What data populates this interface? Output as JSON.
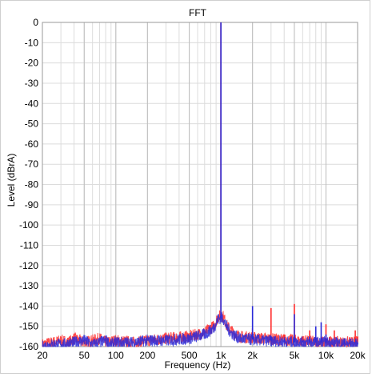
{
  "chart_data": {
    "type": "line",
    "title": "FFT",
    "xlabel": "Frequency (Hz)",
    "ylabel": "Level (dBrA)",
    "xscale": "log",
    "xlim": [
      20,
      20000
    ],
    "ylim": [
      -160,
      0
    ],
    "grid": true,
    "x_ticks": [
      {
        "value": 20,
        "label": "20"
      },
      {
        "value": 50,
        "label": "50"
      },
      {
        "value": 100,
        "label": "100"
      },
      {
        "value": 200,
        "label": "200"
      },
      {
        "value": 500,
        "label": "500"
      },
      {
        "value": 1000,
        "label": "1k"
      },
      {
        "value": 2000,
        "label": "2k"
      },
      {
        "value": 5000,
        "label": "5k"
      },
      {
        "value": 10000,
        "label": "10k"
      },
      {
        "value": 20000,
        "label": "20k"
      }
    ],
    "y_ticks": [
      0,
      -10,
      -20,
      -30,
      -40,
      -50,
      -60,
      -70,
      -80,
      -90,
      -100,
      -110,
      -120,
      -130,
      -140,
      -150,
      -160
    ],
    "series": [
      {
        "color": "#ff2a2a",
        "peaks": [
          [
            1000,
            0
          ],
          [
            2000,
            -151
          ],
          [
            3000,
            -141
          ],
          [
            4000,
            -154
          ],
          [
            5000,
            -139
          ],
          [
            6000,
            -155
          ],
          [
            7000,
            -152
          ],
          [
            8000,
            -158
          ],
          [
            9000,
            -155
          ],
          [
            10000,
            -149
          ],
          [
            11000,
            -155
          ],
          [
            12000,
            -152
          ],
          [
            19000,
            -152
          ],
          [
            20000,
            -155
          ]
        ],
        "floor": [
          [
            20,
            -159
          ],
          [
            25,
            -158
          ],
          [
            30,
            -157
          ],
          [
            35,
            -158
          ],
          [
            40,
            -156
          ],
          [
            50,
            -158
          ],
          [
            60,
            -157
          ],
          [
            70,
            -156
          ],
          [
            80,
            -158
          ],
          [
            100,
            -157
          ],
          [
            150,
            -158
          ],
          [
            200,
            -157
          ],
          [
            300,
            -156
          ],
          [
            500,
            -155
          ],
          [
            700,
            -153
          ],
          [
            850,
            -150
          ],
          [
            950,
            -145
          ],
          [
            1050,
            -145
          ],
          [
            1150,
            -150
          ],
          [
            1300,
            -153
          ],
          [
            1500,
            -155
          ],
          [
            2500,
            -156
          ],
          [
            5000,
            -157
          ],
          [
            10000,
            -158
          ],
          [
            20000,
            -158
          ]
        ]
      },
      {
        "color": "#2a2ad8",
        "peaks": [
          [
            1000,
            0
          ],
          [
            2000,
            -140
          ],
          [
            3000,
            -155
          ],
          [
            4000,
            -156
          ],
          [
            5000,
            -144
          ],
          [
            6000,
            -157
          ],
          [
            7000,
            -155
          ],
          [
            8000,
            -150
          ],
          [
            9000,
            -148
          ],
          [
            10000,
            -154
          ],
          [
            15000,
            -156
          ],
          [
            20000,
            -158
          ]
        ],
        "floor": [
          [
            20,
            -160
          ],
          [
            25,
            -159
          ],
          [
            30,
            -159
          ],
          [
            40,
            -158
          ],
          [
            50,
            -157
          ],
          [
            60,
            -159
          ],
          [
            70,
            -158
          ],
          [
            80,
            -157
          ],
          [
            90,
            -159
          ],
          [
            100,
            -158
          ],
          [
            150,
            -158
          ],
          [
            200,
            -157
          ],
          [
            300,
            -157
          ],
          [
            500,
            -156
          ],
          [
            700,
            -154
          ],
          [
            850,
            -151
          ],
          [
            950,
            -146
          ],
          [
            1050,
            -146
          ],
          [
            1150,
            -151
          ],
          [
            1300,
            -154
          ],
          [
            1500,
            -156
          ],
          [
            2500,
            -157
          ],
          [
            5000,
            -158
          ],
          [
            10000,
            -158
          ],
          [
            20000,
            -159
          ]
        ]
      }
    ]
  }
}
